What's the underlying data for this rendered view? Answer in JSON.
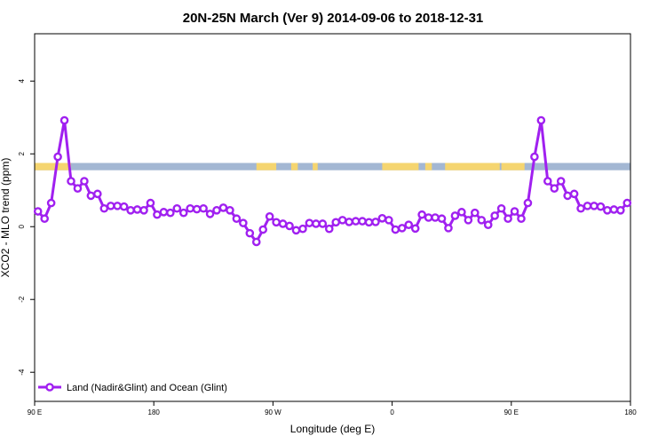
{
  "chart_data": {
    "type": "line",
    "title": "20N-25N March (Ver 9)   2014-09-06 to 2018-12-31",
    "xlabel": "Longitude (deg E)",
    "ylabel": "XCO2 - MLO trend (ppm)",
    "xlim": [
      90,
      450
    ],
    "ylim": [
      -4.8,
      5.3
    ],
    "x_ticks": [
      {
        "value": 90,
        "label": "90 E"
      },
      {
        "value": 162,
        "label": "180"
      },
      {
        "value": 234,
        "label": "90 W"
      },
      {
        "value": 306,
        "label": "0"
      },
      {
        "value": 378,
        "label": "90 E"
      },
      {
        "value": 450,
        "label": "180"
      }
    ],
    "y_ticks": [
      -4,
      -2,
      0,
      2,
      4
    ],
    "land_ocean_band": {
      "y_range": [
        1.55,
        1.75
      ],
      "ocean_color": "#a3b7d3",
      "land_color": "#f5d570",
      "land_x_ranges": [
        [
          90,
          112
        ],
        [
          224,
          236
        ],
        [
          245,
          249
        ],
        [
          258,
          261
        ],
        [
          300,
          322
        ],
        [
          326,
          330
        ],
        [
          338,
          371
        ],
        [
          372,
          386
        ]
      ]
    },
    "legend": {
      "position": "bottom-left"
    },
    "series": [
      {
        "name": "Land (Nadir&Glint) and Ocean (Glint)",
        "color": "#a020f0",
        "x": [
          92,
          96,
          100,
          104,
          108,
          112,
          116,
          120,
          124,
          128,
          132,
          136,
          140,
          144,
          148,
          152,
          156,
          160,
          164,
          168,
          172,
          176,
          180,
          184,
          188,
          192,
          196,
          200,
          204,
          208,
          212,
          216,
          220,
          224,
          228,
          232,
          236,
          240,
          244,
          248,
          252,
          256,
          260,
          264,
          268,
          272,
          276,
          280,
          284,
          288,
          292,
          296,
          300,
          304,
          308,
          312,
          316,
          320,
          324,
          328,
          332,
          336,
          340,
          344,
          348,
          352,
          356,
          360,
          364,
          368,
          372,
          376,
          380,
          384,
          388,
          392,
          396,
          400,
          404,
          408,
          412,
          416,
          420,
          424,
          428,
          432,
          436,
          440,
          444,
          448
        ],
        "y": [
          0.42,
          0.22,
          0.65,
          1.92,
          2.92,
          1.25,
          1.05,
          1.25,
          0.85,
          0.9,
          0.5,
          0.57,
          0.57,
          0.55,
          0.45,
          0.47,
          0.45,
          0.65,
          0.33,
          0.4,
          0.38,
          0.5,
          0.38,
          0.5,
          0.48,
          0.5,
          0.35,
          0.45,
          0.52,
          0.45,
          0.22,
          0.1,
          -0.18,
          -0.42,
          -0.08,
          0.28,
          0.12,
          0.08,
          0.02,
          -0.1,
          -0.06,
          0.1,
          0.08,
          0.08,
          -0.06,
          0.12,
          0.18,
          0.13,
          0.15,
          0.15,
          0.12,
          0.13,
          0.23,
          0.18,
          -0.08,
          -0.04,
          0.05,
          -0.05,
          0.33,
          0.25,
          0.25,
          0.22,
          -0.04,
          0.3,
          0.4,
          0.18,
          0.38,
          0.18,
          0.05,
          0.3,
          0.5,
          0.22,
          0.42,
          0.22,
          0.65,
          1.92,
          2.92,
          1.25,
          1.05,
          1.25,
          0.85,
          0.9,
          0.5,
          0.57,
          0.57,
          0.55,
          0.45,
          0.47,
          0.45,
          0.65
        ]
      }
    ]
  }
}
